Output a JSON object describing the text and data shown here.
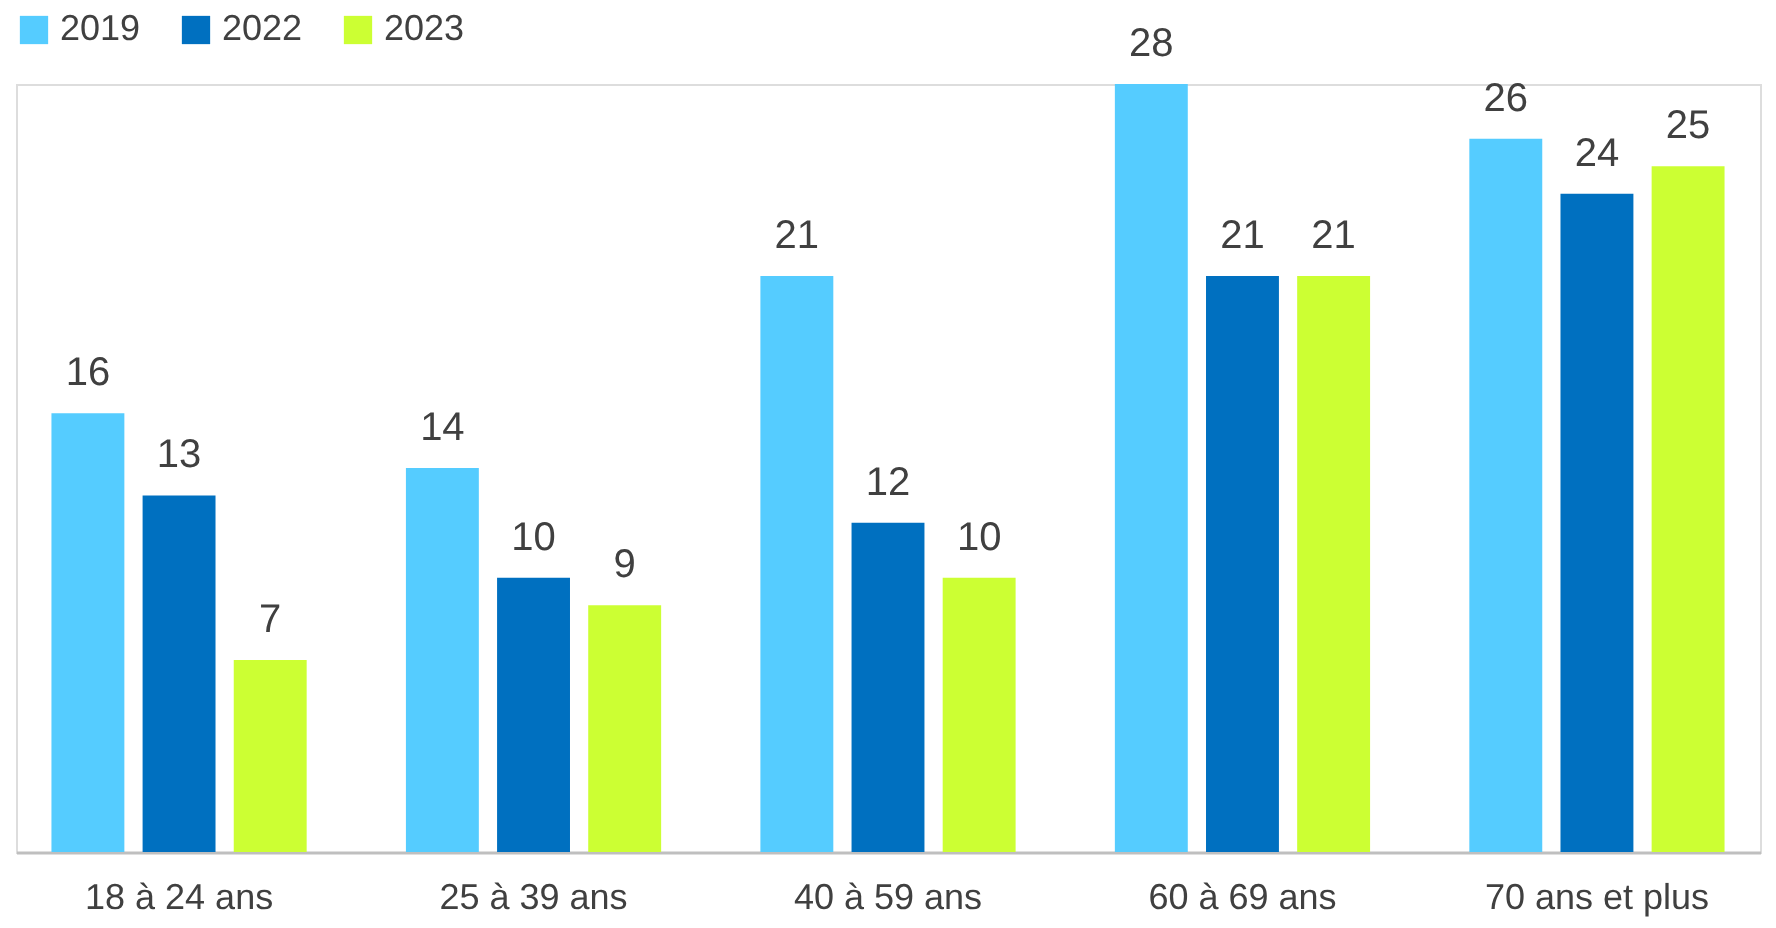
{
  "chart_data": {
    "type": "bar",
    "categories": [
      "18 à 24 ans",
      "25 à 39 ans",
      "40 à 59 ans",
      "60 à 69 ans",
      "70 ans et plus"
    ],
    "series": [
      {
        "name": "2019",
        "color": "#55ccff",
        "values": [
          16,
          14,
          21,
          28,
          26
        ]
      },
      {
        "name": "2022",
        "color": "#0070c0",
        "values": [
          13,
          10,
          12,
          21,
          24
        ]
      },
      {
        "name": "2023",
        "color": "#ccff33",
        "values": [
          7,
          9,
          10,
          21,
          25
        ]
      }
    ],
    "data_labels": true,
    "legend": "top",
    "grid": false
  }
}
